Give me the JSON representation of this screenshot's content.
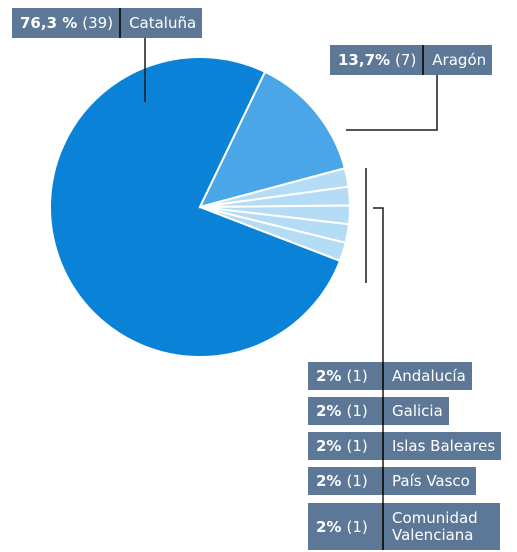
{
  "chart_data": {
    "type": "pie",
    "categories": [
      "Cataluña",
      "Aragón",
      "Andalucía",
      "Galicia",
      "Islas Baleares",
      "País Vasco",
      "Comunidad Valenciana"
    ],
    "values": [
      76.3,
      13.7,
      2,
      2,
      2,
      2,
      2
    ],
    "value_labels": [
      "76,3 %",
      "13,7%",
      "2%",
      "2%",
      "2%",
      "2%",
      "2%"
    ],
    "count_labels": [
      "(39)",
      "(7)",
      "(1)",
      "(1)",
      "(1)",
      "(1)",
      "(1)"
    ],
    "colors": [
      "#0a82d8",
      "#4aa6e6",
      "#b5dcf5",
      "#b5dcf5",
      "#b5dcf5",
      "#b5dcf5",
      "#b5dcf5"
    ]
  }
}
